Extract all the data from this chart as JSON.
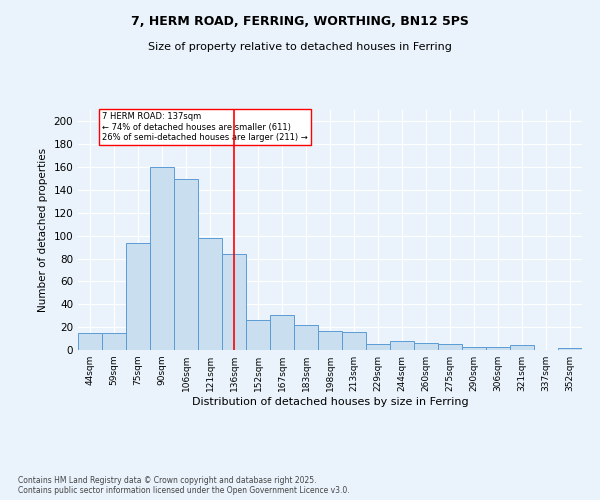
{
  "title_line1": "7, HERM ROAD, FERRING, WORTHING, BN12 5PS",
  "title_line2": "Size of property relative to detached houses in Ferring",
  "xlabel": "Distribution of detached houses by size in Ferring",
  "ylabel": "Number of detached properties",
  "categories": [
    "44sqm",
    "59sqm",
    "75sqm",
    "90sqm",
    "106sqm",
    "121sqm",
    "136sqm",
    "152sqm",
    "167sqm",
    "183sqm",
    "198sqm",
    "213sqm",
    "229sqm",
    "244sqm",
    "260sqm",
    "275sqm",
    "290sqm",
    "306sqm",
    "321sqm",
    "337sqm",
    "352sqm"
  ],
  "values": [
    15,
    15,
    94,
    160,
    150,
    98,
    84,
    26,
    31,
    22,
    17,
    16,
    5,
    8,
    6,
    5,
    3,
    3,
    4,
    0,
    2
  ],
  "bar_color": "#c9dff0",
  "bar_edge_color": "#5b9bd5",
  "vline_x_index": 6,
  "vline_color": "red",
  "annotation_text": "7 HERM ROAD: 137sqm\n← 74% of detached houses are smaller (611)\n26% of semi-detached houses are larger (211) →",
  "annotation_box_color": "white",
  "annotation_box_edge_color": "red",
  "ylim": [
    0,
    210
  ],
  "yticks": [
    0,
    20,
    40,
    60,
    80,
    100,
    120,
    140,
    160,
    180,
    200
  ],
  "footer": "Contains HM Land Registry data © Crown copyright and database right 2025.\nContains public sector information licensed under the Open Government Licence v3.0.",
  "bg_color": "#eaf3fb",
  "grid_color": "white"
}
